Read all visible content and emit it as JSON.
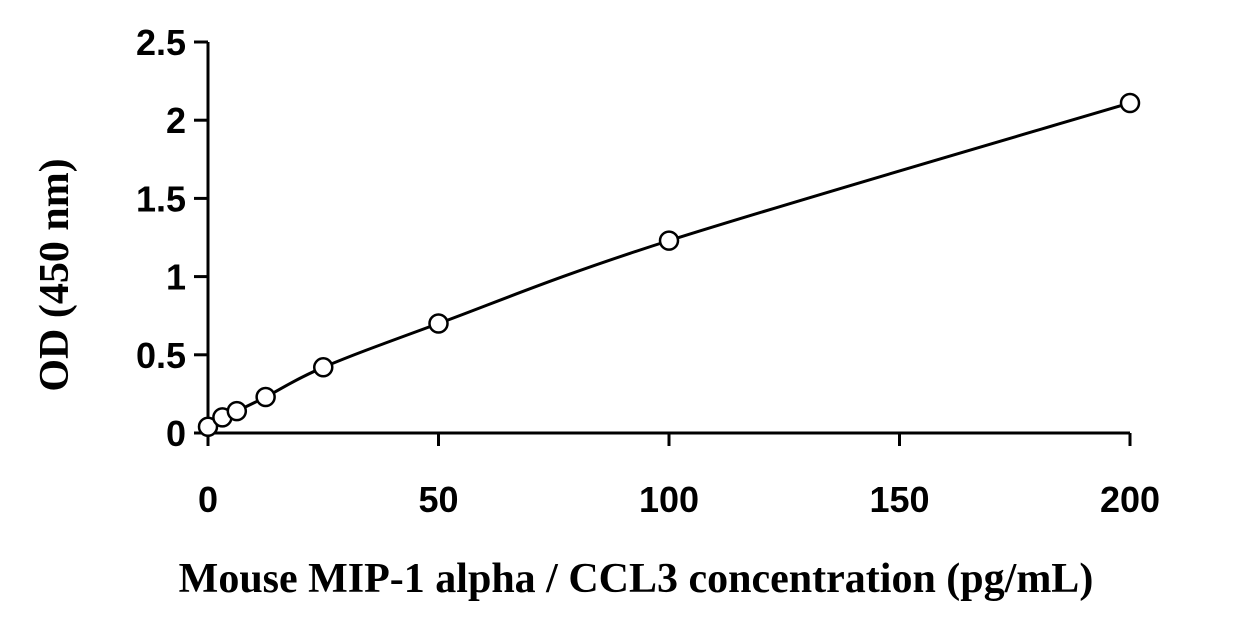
{
  "chart_data": {
    "type": "scatter",
    "title": "",
    "xlabel": "Mouse MIP-1 alpha / CCL3 concentration (pg/mL)",
    "ylabel": "OD (450 nm)",
    "xlim": [
      0,
      200
    ],
    "ylim": [
      0,
      2.5
    ],
    "x_ticks": [
      0,
      50,
      100,
      150,
      200
    ],
    "y_ticks": [
      0,
      0.5,
      1,
      1.5,
      2,
      2.5
    ],
    "x_tick_labels": [
      "0",
      "50",
      "100",
      "150",
      "200"
    ],
    "y_tick_labels": [
      "0",
      "0.5",
      "1",
      "1.5",
      "2",
      "2.5"
    ],
    "grid": false,
    "legend": "none",
    "series": [
      {
        "x": [
          0,
          3.125,
          6.25,
          12.5,
          25,
          50,
          100,
          200
        ],
        "y": [
          0.04,
          0.1,
          0.14,
          0.23,
          0.42,
          0.7,
          1.23,
          2.11
        ],
        "marker": "open-circle",
        "trendline": "smooth-curve",
        "color": "#000000"
      }
    ]
  }
}
